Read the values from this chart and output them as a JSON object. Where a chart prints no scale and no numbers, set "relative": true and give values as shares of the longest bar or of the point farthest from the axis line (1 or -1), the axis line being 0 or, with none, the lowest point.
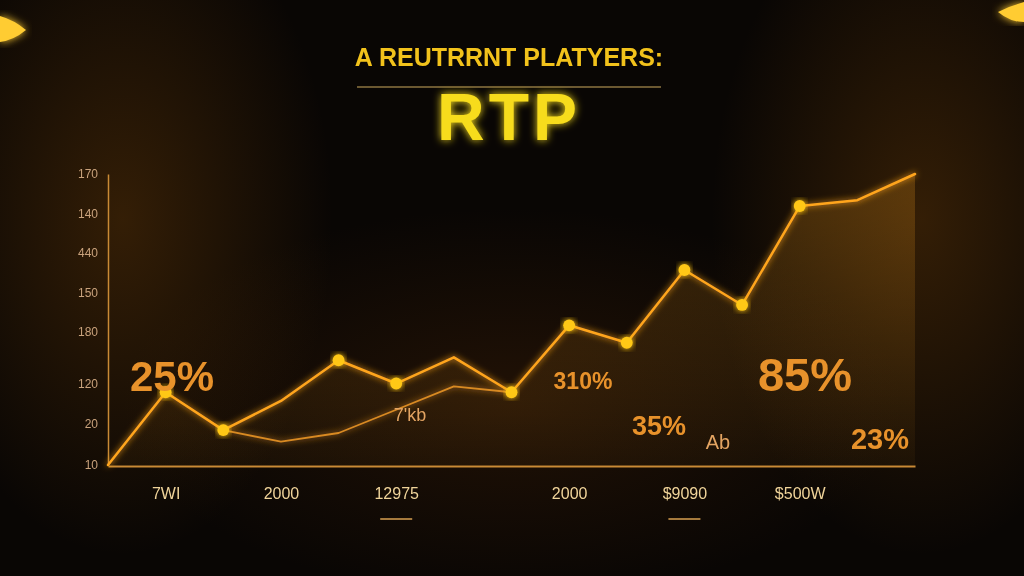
{
  "chart_data": {
    "type": "line",
    "title": "A REUTRRNT PLATYERS:",
    "subtitle": "RTP",
    "relative": true,
    "categories": [
      null,
      "7WI",
      null,
      "2000",
      null,
      "12975",
      null,
      null,
      "2000",
      null,
      "$9090",
      null,
      "$500W",
      null,
      null
    ],
    "series": [
      {
        "type": "area",
        "color": "#ffa51f",
        "values": [
          0,
          0.25,
          0.12,
          0.22,
          0.36,
          0.28,
          0.37,
          0.25,
          0.48,
          0.42,
          0.67,
          0.55,
          0.89,
          0.91,
          1
        ]
      },
      {
        "color": "#d98a22",
        "values": [
          null,
          null,
          0.12,
          0.08,
          0.11,
          0.19,
          0.27,
          0.25,
          null,
          null,
          null,
          null,
          null,
          null,
          null
        ]
      },
      {
        "type": "scatter",
        "marker": "circle",
        "color": "#ffc814",
        "values": [
          null,
          0.25,
          0.12,
          null,
          0.36,
          0.28,
          null,
          0.25,
          0.48,
          0.42,
          0.67,
          0.55,
          0.89,
          null,
          null
        ]
      }
    ],
    "annotations": [
      "170",
      "140",
      "440",
      "150",
      "180",
      "120",
      "20",
      "10",
      "25%",
      "7'kb",
      "310%",
      "35%",
      "Ab",
      "85%",
      "23%"
    ]
  }
}
